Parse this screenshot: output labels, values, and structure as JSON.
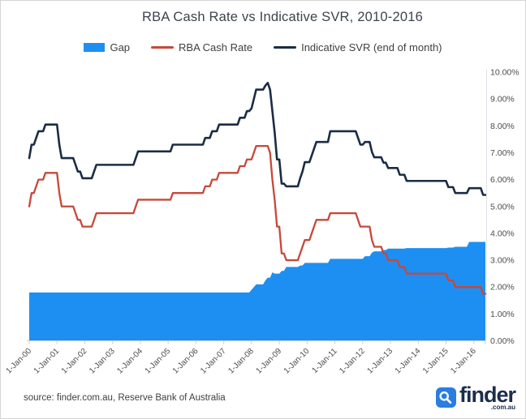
{
  "title": "RBA Cash Rate vs Indicative SVR, 2010-2016",
  "source_note": "source: finder.com.au, Reserve Bank of Australia",
  "logo": {
    "brand": "finder",
    "suffix": ".com.au",
    "tile_color": "#2a7de1",
    "text_color": "#1b2e4a"
  },
  "legend": {
    "items": [
      {
        "label": "Gap",
        "color": "#1e8ff2",
        "kind": "area"
      },
      {
        "label": "RBA Cash Rate",
        "color": "#c5493a",
        "kind": "line"
      },
      {
        "label": "Indicative SVR (end of month)",
        "color": "#1b2c44",
        "kind": "line"
      }
    ]
  },
  "chart_data": {
    "type": "area",
    "title": "RBA Cash Rate vs Indicative SVR, 2010-2016",
    "xlabel": "",
    "ylabel": "",
    "ylim": [
      0,
      10
    ],
    "grid": false,
    "legend_position": "top",
    "x_start": "Jan-2000",
    "x_end": "Jun-2016",
    "x_frequency": "monthly",
    "x_tick_labels": [
      "1-Jan-00",
      "1-Jan-01",
      "1-Jan-02",
      "1-Jan-03",
      "1-Jan-04",
      "1-Jan-05",
      "1-Jan-06",
      "1-Jan-07",
      "1-Jan-08",
      "1-Jan-09",
      "1-Jan-10",
      "1-Jan-11",
      "1-Jan-12",
      "1-Jan-13",
      "1-Jan-14",
      "1-Jan-15",
      "1-Jan-16"
    ],
    "y_tick_labels": [
      "0.00%",
      "1.00%",
      "2.00%",
      "3.00%",
      "4.00%",
      "5.00%",
      "6.00%",
      "7.00%",
      "8.00%",
      "9.00%",
      "10.00%"
    ],
    "series": [
      {
        "name": "Gap",
        "type": "area",
        "color": "#1e8ff2",
        "values": [
          1.8,
          1.8,
          1.8,
          1.8,
          1.8,
          1.8,
          1.8,
          1.8,
          1.8,
          1.8,
          1.8,
          1.8,
          1.8,
          1.8,
          1.8,
          1.8,
          1.8,
          1.8,
          1.8,
          1.8,
          1.8,
          1.8,
          1.8,
          1.8,
          1.8,
          1.8,
          1.8,
          1.8,
          1.8,
          1.8,
          1.8,
          1.8,
          1.8,
          1.8,
          1.8,
          1.8,
          1.8,
          1.8,
          1.8,
          1.8,
          1.8,
          1.8,
          1.8,
          1.8,
          1.8,
          1.8,
          1.8,
          1.8,
          1.8,
          1.8,
          1.8,
          1.8,
          1.8,
          1.8,
          1.8,
          1.8,
          1.8,
          1.8,
          1.8,
          1.8,
          1.8,
          1.8,
          1.8,
          1.8,
          1.8,
          1.8,
          1.8,
          1.8,
          1.8,
          1.8,
          1.8,
          1.8,
          1.8,
          1.8,
          1.8,
          1.8,
          1.8,
          1.8,
          1.8,
          1.8,
          1.8,
          1.8,
          1.8,
          1.8,
          1.8,
          1.8,
          1.8,
          1.8,
          1.8,
          1.8,
          1.8,
          1.8,
          1.8,
          1.8,
          1.8,
          1.8,
          1.9,
          2.0,
          2.1,
          2.1,
          2.1,
          2.1,
          2.25,
          2.35,
          2.35,
          2.55,
          2.5,
          2.5,
          2.5,
          2.6,
          2.6,
          2.75,
          2.75,
          2.75,
          2.75,
          2.75,
          2.75,
          2.8,
          2.8,
          2.9,
          2.9,
          2.9,
          2.9,
          2.9,
          2.9,
          2.9,
          2.9,
          2.9,
          2.9,
          2.9,
          3.05,
          3.05,
          3.05,
          3.05,
          3.05,
          3.05,
          3.05,
          3.05,
          3.05,
          3.05,
          3.05,
          3.05,
          3.05,
          3.05,
          3.05,
          3.15,
          3.15,
          3.15,
          3.28,
          3.33,
          3.33,
          3.33,
          3.33,
          3.38,
          3.38,
          3.43,
          3.43,
          3.43,
          3.43,
          3.43,
          3.43,
          3.43,
          3.43,
          3.45,
          3.45,
          3.45,
          3.45,
          3.45,
          3.45,
          3.45,
          3.45,
          3.45,
          3.45,
          3.45,
          3.45,
          3.45,
          3.45,
          3.45,
          3.45,
          3.45,
          3.45,
          3.47,
          3.47,
          3.47,
          3.5,
          3.5,
          3.5,
          3.5,
          3.5,
          3.5,
          3.68,
          3.68,
          3.68,
          3.68,
          3.68,
          3.68,
          3.68,
          3.68
        ]
      },
      {
        "name": "RBA Cash Rate",
        "type": "line",
        "color": "#c5493a",
        "values": [
          5.0,
          5.5,
          5.5,
          5.75,
          6.0,
          6.0,
          6.0,
          6.25,
          6.25,
          6.25,
          6.25,
          6.25,
          6.25,
          5.5,
          5.0,
          5.0,
          5.0,
          5.0,
          5.0,
          5.0,
          4.75,
          4.5,
          4.5,
          4.25,
          4.25,
          4.25,
          4.25,
          4.25,
          4.5,
          4.75,
          4.75,
          4.75,
          4.75,
          4.75,
          4.75,
          4.75,
          4.75,
          4.75,
          4.75,
          4.75,
          4.75,
          4.75,
          4.75,
          4.75,
          4.75,
          4.75,
          5.0,
          5.25,
          5.25,
          5.25,
          5.25,
          5.25,
          5.25,
          5.25,
          5.25,
          5.25,
          5.25,
          5.25,
          5.25,
          5.25,
          5.25,
          5.25,
          5.5,
          5.5,
          5.5,
          5.5,
          5.5,
          5.5,
          5.5,
          5.5,
          5.5,
          5.5,
          5.5,
          5.5,
          5.5,
          5.5,
          5.75,
          5.75,
          5.75,
          6.0,
          6.0,
          6.0,
          6.25,
          6.25,
          6.25,
          6.25,
          6.25,
          6.25,
          6.25,
          6.25,
          6.25,
          6.5,
          6.5,
          6.5,
          6.75,
          6.75,
          6.75,
          7.0,
          7.25,
          7.25,
          7.25,
          7.25,
          7.25,
          7.25,
          7.0,
          6.0,
          5.25,
          4.25,
          4.25,
          3.25,
          3.25,
          3.0,
          3.0,
          3.0,
          3.0,
          3.0,
          3.0,
          3.25,
          3.5,
          3.75,
          3.75,
          3.75,
          4.0,
          4.25,
          4.5,
          4.5,
          4.5,
          4.5,
          4.5,
          4.5,
          4.75,
          4.75,
          4.75,
          4.75,
          4.75,
          4.75,
          4.75,
          4.75,
          4.75,
          4.75,
          4.75,
          4.75,
          4.5,
          4.25,
          4.25,
          4.25,
          4.25,
          4.25,
          3.75,
          3.5,
          3.5,
          3.5,
          3.5,
          3.25,
          3.25,
          3.0,
          3.0,
          3.0,
          3.0,
          3.0,
          2.75,
          2.75,
          2.75,
          2.5,
          2.5,
          2.5,
          2.5,
          2.5,
          2.5,
          2.5,
          2.5,
          2.5,
          2.5,
          2.5,
          2.5,
          2.5,
          2.5,
          2.5,
          2.5,
          2.5,
          2.5,
          2.25,
          2.25,
          2.25,
          2.0,
          2.0,
          2.0,
          2.0,
          2.0,
          2.0,
          2.0,
          2.0,
          2.0,
          2.0,
          2.0,
          2.0,
          1.75,
          1.75
        ]
      },
      {
        "name": "Indicative SVR (end of month)",
        "type": "line",
        "color": "#1b2c44",
        "values": [
          6.8,
          7.3,
          7.3,
          7.55,
          7.8,
          7.8,
          7.8,
          8.05,
          8.05,
          8.05,
          8.05,
          8.05,
          8.05,
          7.3,
          6.8,
          6.8,
          6.8,
          6.8,
          6.8,
          6.8,
          6.55,
          6.3,
          6.3,
          6.05,
          6.05,
          6.05,
          6.05,
          6.05,
          6.3,
          6.55,
          6.55,
          6.55,
          6.55,
          6.55,
          6.55,
          6.55,
          6.55,
          6.55,
          6.55,
          6.55,
          6.55,
          6.55,
          6.55,
          6.55,
          6.55,
          6.55,
          6.8,
          7.05,
          7.05,
          7.05,
          7.05,
          7.05,
          7.05,
          7.05,
          7.05,
          7.05,
          7.05,
          7.05,
          7.05,
          7.05,
          7.05,
          7.05,
          7.3,
          7.3,
          7.3,
          7.3,
          7.3,
          7.3,
          7.3,
          7.3,
          7.3,
          7.3,
          7.3,
          7.3,
          7.3,
          7.3,
          7.55,
          7.55,
          7.55,
          7.8,
          7.8,
          7.8,
          8.05,
          8.05,
          8.05,
          8.05,
          8.05,
          8.05,
          8.05,
          8.05,
          8.05,
          8.3,
          8.3,
          8.3,
          8.55,
          8.55,
          8.65,
          9.0,
          9.35,
          9.35,
          9.35,
          9.35,
          9.5,
          9.6,
          9.35,
          8.55,
          7.75,
          6.75,
          6.75,
          5.85,
          5.85,
          5.75,
          5.75,
          5.75,
          5.75,
          5.75,
          5.75,
          6.05,
          6.3,
          6.65,
          6.65,
          6.65,
          6.9,
          7.15,
          7.4,
          7.4,
          7.4,
          7.4,
          7.4,
          7.4,
          7.8,
          7.8,
          7.8,
          7.8,
          7.8,
          7.8,
          7.8,
          7.8,
          7.8,
          7.8,
          7.8,
          7.8,
          7.55,
          7.3,
          7.3,
          7.4,
          7.4,
          7.4,
          7.03,
          6.83,
          6.83,
          6.83,
          6.83,
          6.63,
          6.63,
          6.43,
          6.43,
          6.43,
          6.43,
          6.43,
          6.18,
          6.18,
          6.18,
          5.95,
          5.95,
          5.95,
          5.95,
          5.95,
          5.95,
          5.95,
          5.95,
          5.95,
          5.95,
          5.95,
          5.95,
          5.95,
          5.95,
          5.95,
          5.95,
          5.95,
          5.95,
          5.72,
          5.72,
          5.72,
          5.5,
          5.5,
          5.5,
          5.5,
          5.5,
          5.5,
          5.68,
          5.68,
          5.68,
          5.68,
          5.68,
          5.68,
          5.43,
          5.43
        ]
      }
    ]
  }
}
